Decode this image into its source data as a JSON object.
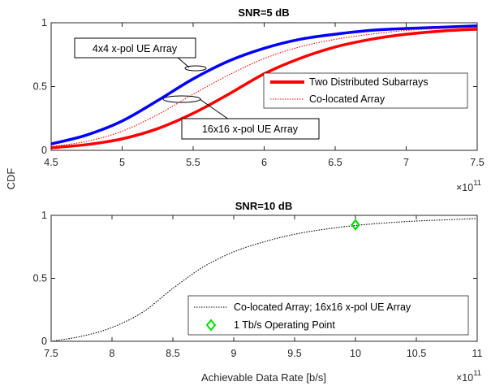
{
  "y_axis_label": "CDF",
  "chart_data": [
    {
      "type": "line",
      "title": "SNR=5 dB",
      "xlabel": "",
      "ylabel": "",
      "xlim": [
        450000000000.0,
        750000000000.0
      ],
      "ylim": [
        0,
        1
      ],
      "x_ticks": [
        450000000000.0,
        500000000000.0,
        550000000000.0,
        600000000000.0,
        650000000000.0,
        700000000000.0,
        750000000000.0
      ],
      "x_tick_labels": [
        "4.5",
        "5",
        "5.5",
        "6",
        "6.5",
        "7",
        "7.5"
      ],
      "y_ticks": [
        0,
        0.5,
        1
      ],
      "y_tick_labels": [
        "0",
        "0.5",
        "1"
      ],
      "x_exponent": {
        "base": "×10",
        "power": "11"
      },
      "grid": false,
      "legend_position": "center-right",
      "series": [
        {
          "name": "",
          "color": "#0000ff",
          "style": "solid-thick",
          "x": [
            450000000000.0,
            475000000000.0,
            500000000000.0,
            525000000000.0,
            550000000000.0,
            575000000000.0,
            600000000000.0,
            625000000000.0,
            650000000000.0,
            675000000000.0,
            700000000000.0,
            725000000000.0,
            750000000000.0
          ],
          "y": [
            0.05,
            0.12,
            0.23,
            0.39,
            0.56,
            0.7,
            0.8,
            0.87,
            0.91,
            0.94,
            0.955,
            0.965,
            0.975
          ]
        },
        {
          "name": "Two Distributed Subarrays",
          "color": "#ff0000",
          "style": "solid-thick",
          "x": [
            450000000000.0,
            475000000000.0,
            500000000000.0,
            525000000000.0,
            550000000000.0,
            575000000000.0,
            600000000000.0,
            625000000000.0,
            650000000000.0,
            675000000000.0,
            700000000000.0,
            725000000000.0,
            750000000000.0
          ],
          "y": [
            0.02,
            0.045,
            0.09,
            0.17,
            0.29,
            0.44,
            0.6,
            0.72,
            0.81,
            0.87,
            0.91,
            0.935,
            0.95
          ]
        },
        {
          "name": "Co-located Array",
          "color": "#ff0000",
          "style": "dotted",
          "x": [
            450000000000.0,
            475000000000.0,
            500000000000.0,
            525000000000.0,
            550000000000.0,
            575000000000.0,
            600000000000.0,
            625000000000.0,
            650000000000.0,
            675000000000.0,
            700000000000.0,
            725000000000.0,
            750000000000.0
          ],
          "y": [
            0.03,
            0.07,
            0.15,
            0.28,
            0.44,
            0.59,
            0.72,
            0.81,
            0.87,
            0.91,
            0.94,
            0.955,
            0.965
          ]
        }
      ],
      "annotations": [
        {
          "text": "4x4 x-pol UE Array"
        },
        {
          "text": "16x16 x-pol UE Array"
        }
      ]
    },
    {
      "type": "line",
      "title": "SNR=10 dB",
      "xlabel": "Achievable Data Rate [b/s]",
      "ylabel": "",
      "xlim": [
        750000000000.0,
        1100000000000.0
      ],
      "ylim": [
        0,
        1
      ],
      "x_ticks": [
        750000000000.0,
        800000000000.0,
        850000000000.0,
        900000000000.0,
        950000000000.0,
        1000000000000.0,
        1050000000000.0,
        1100000000000.0
      ],
      "x_tick_labels": [
        "7.5",
        "8",
        "8.5",
        "9",
        "9.5",
        "10",
        "10.5",
        "11"
      ],
      "y_ticks": [
        0,
        0.5,
        1
      ],
      "y_tick_labels": [
        "0",
        "0.5",
        "1"
      ],
      "x_exponent": {
        "base": "×10",
        "power": "11"
      },
      "grid": false,
      "legend_position": "bottom-right",
      "series": [
        {
          "name": "Co-located Array; 16x16 x-pol UE Array",
          "color": "#000000",
          "style": "dotted",
          "x": [
            750000000000.0,
            775000000000.0,
            800000000000.0,
            825000000000.0,
            850000000000.0,
            875000000000.0,
            900000000000.0,
            925000000000.0,
            950000000000.0,
            975000000000.0,
            1000000000000.0,
            1025000000000.0,
            1050000000000.0,
            1075000000000.0,
            1100000000000.0
          ],
          "y": [
            0.0,
            0.04,
            0.11,
            0.23,
            0.42,
            0.59,
            0.71,
            0.79,
            0.85,
            0.89,
            0.92,
            0.94,
            0.955,
            0.965,
            0.975
          ]
        },
        {
          "name": "1 Tb/s Operating Point",
          "color": "#00dd00",
          "style": "marker-diamond",
          "x": [
            1000000000000.0
          ],
          "y": [
            0.925
          ]
        }
      ]
    }
  ]
}
